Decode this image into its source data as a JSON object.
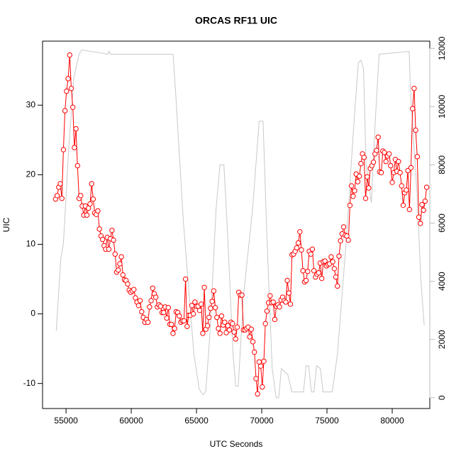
{
  "chart_data": {
    "type": "line",
    "title": "ORCAS RF11 UIC",
    "x_label": "UTC Seconds",
    "y_label": "UIC",
    "xlim": [
      53200,
      82880
    ],
    "ylim": [
      -13.6,
      39.2
    ],
    "y2lim": [
      -370,
      12250
    ],
    "xticks": [
      55000,
      60000,
      65000,
      70000,
      75000,
      80000
    ],
    "yticks": [
      -10,
      0,
      10,
      20,
      30
    ],
    "y2ticks": [
      0,
      2000,
      4000,
      6000,
      8000,
      10000,
      12000
    ],
    "y2tick_color": "#bbbbbb",
    "series": [
      {
        "color": "#ff0000",
        "markers": true,
        "x": [
          54200,
          54320,
          54440,
          54560,
          54680,
          54800,
          54920,
          55040,
          55160,
          55280,
          55400,
          55520,
          55640,
          55760,
          55880,
          56000,
          56120,
          56240,
          56360,
          56480,
          56600,
          56720,
          56840,
          56960,
          57080,
          57200,
          57320,
          57440,
          57560,
          57680,
          57800,
          57920,
          58040,
          58160,
          58280,
          58400,
          58520,
          58640,
          58760,
          58880,
          59000,
          59120,
          59240,
          59360,
          59480,
          59600,
          59720,
          59840,
          59960,
          60080,
          60200,
          60320,
          60440,
          60560,
          60680,
          60800,
          60920,
          61040,
          61160,
          61280,
          61400,
          61520,
          61640,
          61760,
          61880,
          62000,
          62120,
          62240,
          62360,
          62480,
          62600,
          62720,
          62840,
          62960,
          63080,
          63200,
          63320,
          63440,
          63560,
          63680,
          63800,
          63920,
          64040,
          64160,
          64280,
          64400,
          64520,
          64640,
          64760,
          64880,
          65000,
          65120,
          65240,
          65360,
          65480,
          65600,
          65720,
          65840,
          65960,
          66080,
          66200,
          66320,
          66440,
          66560,
          66680,
          66800,
          66920,
          67040,
          67160,
          67280,
          67400,
          67520,
          67640,
          67760,
          67880,
          68000,
          68120,
          68240,
          68360,
          68480,
          68600,
          68720,
          68840,
          68960,
          69080,
          69200,
          69320,
          69440,
          69560,
          69680,
          69800,
          69920,
          70040,
          70160,
          70280,
          70400,
          70520,
          70640,
          70760,
          70880,
          71000,
          71120,
          71240,
          71360,
          71480,
          71600,
          71720,
          71840,
          71960,
          72080,
          72200,
          72320,
          72440,
          72560,
          72680,
          72800,
          72920,
          73040,
          73160,
          73280,
          73400,
          73520,
          73640,
          73760,
          73880,
          74000,
          74120,
          74240,
          74360,
          74480,
          74600,
          74720,
          74840,
          74960,
          75080,
          75200,
          75320,
          75440,
          75560,
          75680,
          75800,
          75920,
          76040,
          76160,
          76280,
          76400,
          76520,
          76640,
          76760,
          76880,
          77000,
          77120,
          77240,
          77360,
          77480,
          77600,
          77720,
          77840,
          77960,
          78080,
          78200,
          78320,
          78440,
          78560,
          78680,
          78800,
          78920,
          79040,
          79160,
          79280,
          79400,
          79520,
          79640,
          79760,
          79880,
          80000,
          80120,
          80240,
          80360,
          80480,
          80600,
          80720,
          80840,
          80960,
          81080,
          81200,
          81320,
          81440,
          81560,
          81680,
          81800,
          81920,
          82040,
          82160,
          82280,
          82400,
          82520,
          82640
        ],
        "values": [
          16.5,
          17,
          18.2,
          18.7,
          16.6,
          23.6,
          29.2,
          32,
          33.8,
          37.2,
          32.4,
          29.7,
          23.9,
          26.6,
          21.3,
          16.6,
          17,
          15.5,
          14.2,
          15.5,
          14.2,
          15.2,
          15.8,
          18.7,
          16.5,
          14.5,
          14.3,
          14.8,
          12.2,
          11.2,
          10.7,
          9.8,
          9.3,
          11,
          9.3,
          10.8,
          12,
          10.6,
          8.6,
          6,
          6.3,
          7.2,
          8.2,
          5.6,
          4.9,
          4.8,
          4.3,
          3.4,
          3.1,
          3.3,
          3.5,
          2.3,
          1.7,
          1.2,
          1.9,
          0.3,
          -0.5,
          -1.2,
          -0.8,
          -1.2,
          1,
          1.9,
          3.7,
          2.9,
          2.4,
          1,
          1.3,
          1.1,
          0.2,
          0.2,
          1,
          -0.6,
          0.9,
          -1.5,
          -1.5,
          -2.8,
          -2.1,
          0.3,
          0.2,
          -0.3,
          -1.2,
          -1,
          -1,
          5,
          -1.8,
          -0.2,
          -0.2,
          1.2,
          0,
          1.7,
          1.1,
          1.1,
          0.5,
          1.4,
          -2.8,
          3.8,
          -2.2,
          -1.7,
          -0.5,
          0.8,
          1.8,
          3.3,
          0.9,
          -0.5,
          -2.1,
          -2.8,
          -0.3,
          -1.6,
          -1.2,
          -2.7,
          -1.7,
          -2.3,
          -1.2,
          -1.4,
          -2.6,
          -3.6,
          -1.9,
          3.1,
          2.7,
          2.7,
          -2.3,
          -2.3,
          -2.1,
          -1.9,
          -3.3,
          -2.2,
          -4,
          -5.5,
          -9.3,
          -11.5,
          -6.9,
          -7.5,
          -10.5,
          -6.8,
          -1.4,
          0.4,
          1.6,
          2.6,
          1.6,
          1.7,
          -0.8,
          1.1,
          1.3,
          1,
          2,
          2.4,
          1.9,
          1.7,
          4.8,
          3,
          1.4,
          8.5,
          8.6,
          9,
          9.5,
          10.2,
          11.8,
          9.2,
          6.2,
          4.6,
          4.8,
          6.1,
          9,
          8.6,
          9.3,
          6.2,
          5.3,
          5.7,
          5.9,
          7.3,
          5.1,
          7.5,
          7.6,
          6.9,
          7.1,
          7.2,
          8.2,
          7.5,
          6.5,
          5.3,
          4,
          8.3,
          10.5,
          11.5,
          12.5,
          11.3,
          11.2,
          10.6,
          15.6,
          18.4,
          16.9,
          17.7,
          20.1,
          19,
          19.8,
          21.6,
          23,
          22.5,
          16.6,
          19.7,
          18.1,
          20.9,
          21.3,
          21.8,
          23,
          23.5,
          25.4,
          20.4,
          20.3,
          23.4,
          23.2,
          21.9,
          22.7,
          23,
          21.3,
          18.9,
          20.3,
          22.2,
          20.5,
          21.9,
          20.3,
          18.4,
          15.6,
          17.4,
          17.8,
          20.6,
          15,
          21,
          29.5,
          32.4,
          26.4,
          22.6,
          13.9,
          13,
          15.7,
          14.9,
          16.2,
          18.2
        ]
      },
      {
        "color": "#c8c8c8",
        "axis": "y2",
        "markers": false,
        "x": [
          54250,
          54600,
          54800,
          55200,
          55600,
          56000,
          56200,
          58200,
          58300,
          58400,
          63200,
          63400,
          64000,
          64800,
          65200,
          65500,
          65700,
          66000,
          66500,
          66800,
          67100,
          67400,
          67800,
          68000,
          68200,
          68600,
          69300,
          69800,
          70100,
          70400,
          70800,
          71100,
          71300,
          71500,
          72000,
          72300,
          73200,
          73400,
          73600,
          73800,
          74000,
          74200,
          74500,
          74700,
          75400,
          75800,
          76500,
          77000,
          77400,
          77600,
          77800,
          78000,
          78400,
          78700,
          79000,
          81300,
          81400,
          81900,
          82200,
          82450
        ],
        "values": [
          2300,
          4800,
          5300,
          8500,
          11000,
          11800,
          11950,
          11800,
          11900,
          11800,
          11800,
          10500,
          6000,
          1500,
          300,
          100,
          200,
          2000,
          6500,
          8000,
          8000,
          5500,
          1500,
          400,
          400,
          3500,
          6500,
          9500,
          9500,
          5500,
          1000,
          0,
          0,
          1000,
          800,
          200,
          200,
          1100,
          1100,
          200,
          200,
          1100,
          1000,
          200,
          200,
          1500,
          5500,
          9000,
          11500,
          11600,
          11300,
          8000,
          6700,
          9500,
          11800,
          11900,
          10500,
          7000,
          4000,
          2500
        ]
      }
    ]
  }
}
